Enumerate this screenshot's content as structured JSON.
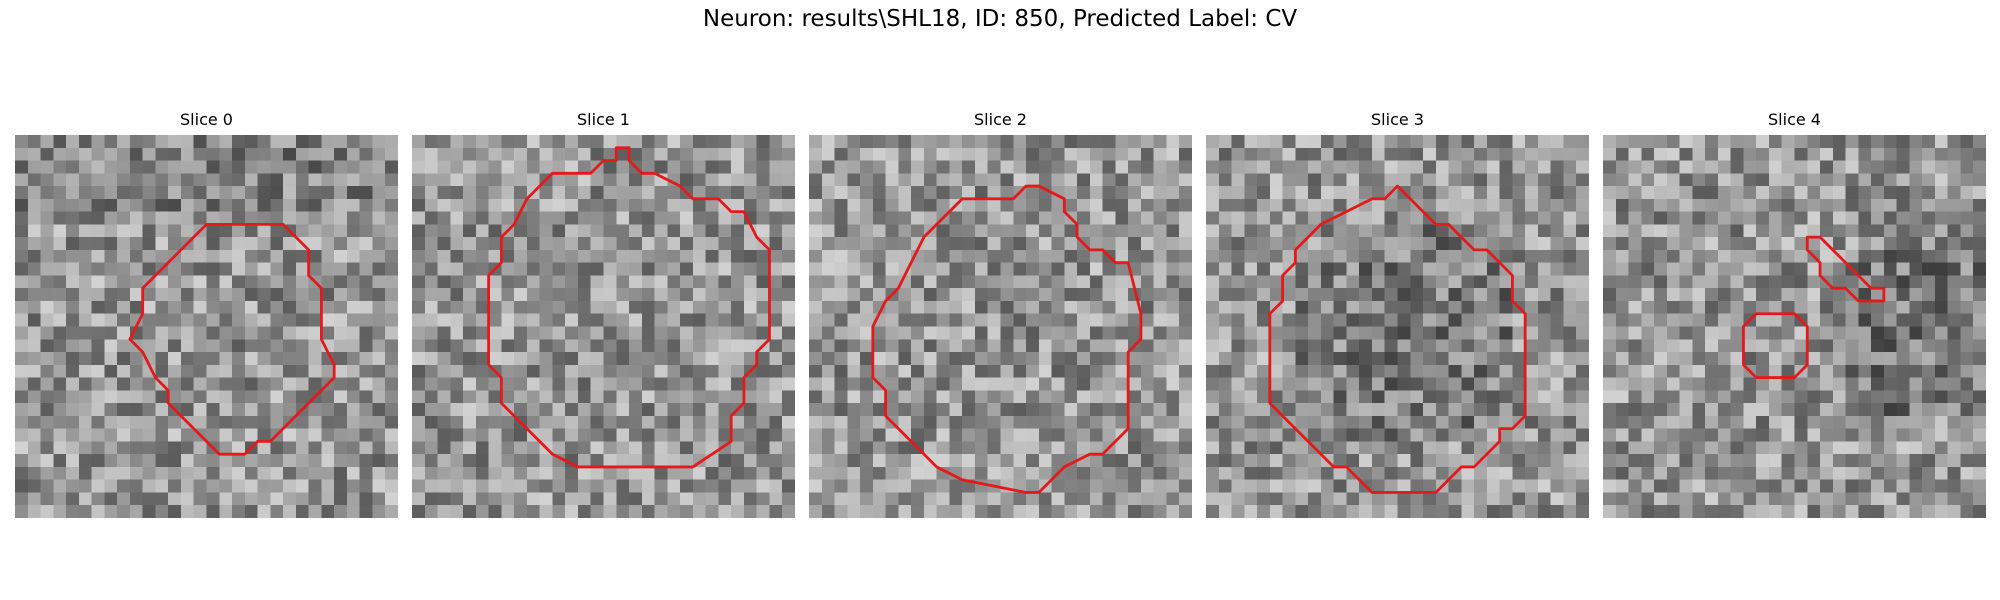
{
  "figure": {
    "title": "Neuron: results\\SHL18, ID: 850, Predicted Label: CV"
  },
  "slices": [
    {
      "title": "Slice 0",
      "outlines": [
        [
          [
            15,
            7
          ],
          [
            13,
            9
          ],
          [
            10,
            12
          ],
          [
            10,
            14
          ],
          [
            9,
            16
          ],
          [
            10,
            17
          ],
          [
            11,
            19
          ],
          [
            12,
            20
          ],
          [
            12,
            21
          ],
          [
            13,
            22
          ],
          [
            14,
            23
          ],
          [
            15,
            24
          ],
          [
            16,
            25
          ],
          [
            18,
            25
          ],
          [
            19,
            24
          ],
          [
            20,
            24
          ],
          [
            23,
            21
          ],
          [
            24,
            20
          ],
          [
            25,
            19
          ],
          [
            25,
            18
          ],
          [
            24,
            16
          ],
          [
            24,
            12
          ],
          [
            23,
            11
          ],
          [
            23,
            9
          ],
          [
            21,
            7
          ]
        ]
      ]
    },
    {
      "title": "Slice 1",
      "outlines": [
        [
          [
            11,
            3
          ],
          [
            9,
            5
          ],
          [
            8,
            7
          ],
          [
            7,
            8
          ],
          [
            7,
            10
          ],
          [
            6,
            11
          ],
          [
            6,
            12
          ],
          [
            6,
            14
          ],
          [
            6,
            16
          ],
          [
            6,
            18
          ],
          [
            7,
            19
          ],
          [
            7,
            21
          ],
          [
            8,
            22
          ],
          [
            9,
            23
          ],
          [
            11,
            25
          ],
          [
            13,
            26
          ],
          [
            22,
            26
          ],
          [
            25,
            24
          ],
          [
            25,
            23
          ],
          [
            25,
            22
          ],
          [
            26,
            21
          ],
          [
            26,
            20
          ],
          [
            26,
            19
          ],
          [
            27,
            18
          ],
          [
            27,
            17
          ],
          [
            28,
            16
          ],
          [
            28,
            14
          ],
          [
            28,
            12
          ],
          [
            28,
            10
          ],
          [
            28,
            9
          ],
          [
            27,
            8
          ],
          [
            26,
            6
          ],
          [
            25,
            6
          ],
          [
            24,
            5
          ],
          [
            22,
            5
          ],
          [
            21,
            4
          ],
          [
            19,
            3
          ],
          [
            18,
            3
          ],
          [
            17,
            2
          ],
          [
            17,
            1
          ],
          [
            16,
            1
          ],
          [
            16,
            2
          ],
          [
            15,
            2
          ],
          [
            14,
            3
          ]
        ]
      ]
    },
    {
      "title": "Slice 2",
      "outlines": [
        [
          [
            12,
            5
          ],
          [
            10,
            7
          ],
          [
            9,
            8
          ],
          [
            8,
            10
          ],
          [
            7,
            12
          ],
          [
            6,
            13
          ],
          [
            5,
            15
          ],
          [
            5,
            19
          ],
          [
            6,
            20
          ],
          [
            6,
            22
          ],
          [
            7,
            23
          ],
          [
            8,
            24
          ],
          [
            9,
            25
          ],
          [
            10,
            26
          ],
          [
            12,
            27
          ],
          [
            17,
            28
          ],
          [
            18,
            28
          ],
          [
            19,
            27
          ],
          [
            20,
            26
          ],
          [
            22,
            25
          ],
          [
            23,
            25
          ],
          [
            24,
            24
          ],
          [
            25,
            23
          ],
          [
            25,
            22
          ],
          [
            25,
            20
          ],
          [
            25,
            19
          ],
          [
            25,
            17
          ],
          [
            26,
            16
          ],
          [
            26,
            14
          ],
          [
            25,
            10
          ],
          [
            24,
            10
          ],
          [
            23,
            9
          ],
          [
            22,
            9
          ],
          [
            21,
            8
          ],
          [
            21,
            7
          ],
          [
            20,
            6
          ],
          [
            20,
            5
          ],
          [
            18,
            4
          ],
          [
            17,
            4
          ],
          [
            16,
            5
          ],
          [
            14,
            5
          ]
        ]
      ]
    },
    {
      "title": "Slice 3",
      "outlines": [
        [
          [
            13,
            5
          ],
          [
            11,
            6
          ],
          [
            9,
            7
          ],
          [
            8,
            8
          ],
          [
            7,
            9
          ],
          [
            7,
            10
          ],
          [
            6,
            11
          ],
          [
            6,
            13
          ],
          [
            5,
            14
          ],
          [
            5,
            15
          ],
          [
            5,
            17
          ],
          [
            5,
            21
          ],
          [
            6,
            22
          ],
          [
            7,
            23
          ],
          [
            8,
            24
          ],
          [
            9,
            25
          ],
          [
            10,
            26
          ],
          [
            11,
            26
          ],
          [
            12,
            27
          ],
          [
            13,
            28
          ],
          [
            18,
            28
          ],
          [
            19,
            27
          ],
          [
            20,
            26
          ],
          [
            21,
            26
          ],
          [
            22,
            25
          ],
          [
            23,
            24
          ],
          [
            23,
            23
          ],
          [
            24,
            23
          ],
          [
            25,
            22
          ],
          [
            25,
            20
          ],
          [
            25,
            18
          ],
          [
            25,
            16
          ],
          [
            25,
            14
          ],
          [
            24,
            13
          ],
          [
            24,
            12
          ],
          [
            24,
            11
          ],
          [
            23,
            10
          ],
          [
            22,
            9
          ],
          [
            21,
            9
          ],
          [
            20,
            8
          ],
          [
            19,
            7
          ],
          [
            18,
            7
          ],
          [
            17,
            6
          ],
          [
            16,
            5
          ],
          [
            15,
            4
          ],
          [
            14,
            5
          ]
        ]
      ]
    },
    {
      "title": "Slice 4",
      "outlines": [
        [
          [
            16,
            8
          ],
          [
            16,
            9
          ],
          [
            17,
            10
          ],
          [
            17,
            11
          ],
          [
            18,
            12
          ],
          [
            19,
            12
          ],
          [
            20,
            13
          ],
          [
            21,
            13
          ],
          [
            22,
            13
          ],
          [
            22,
            12
          ],
          [
            21,
            12
          ],
          [
            20,
            11
          ],
          [
            19,
            10
          ],
          [
            18,
            9
          ],
          [
            17,
            8
          ],
          [
            16,
            8
          ]
        ],
        [
          [
            12,
            14
          ],
          [
            11,
            15
          ],
          [
            11,
            16
          ],
          [
            11,
            18
          ],
          [
            12,
            19
          ],
          [
            15,
            19
          ],
          [
            16,
            18
          ],
          [
            16,
            17
          ],
          [
            16,
            15
          ],
          [
            15,
            14
          ]
        ]
      ]
    }
  ]
}
